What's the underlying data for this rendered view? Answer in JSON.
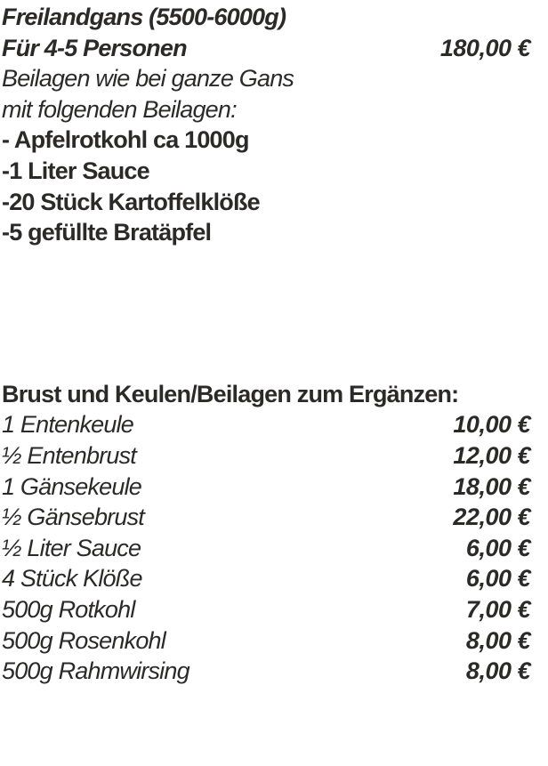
{
  "page": {
    "background": "#ffffff",
    "text_color": "#2b2a29"
  },
  "section_gans": {
    "title": "Freilandgans (5500-6000g)",
    "serving": {
      "label": "Für 4-5 Personen",
      "price": "180,00 €"
    },
    "notes": [
      "Beilagen wie bei ganze Gans",
      "mit folgenden Beilagen:"
    ],
    "sides": [
      "- Apfelrotkohl ca 1000g",
      "-1 Liter Sauce",
      "-20 Stück Kartoffelklöße",
      "-5 gefüllte Bratäpfel"
    ]
  },
  "section_extras": {
    "heading": "Brust und Keulen/Beilagen zum Ergänzen:",
    "items": [
      {
        "name": "1 Entenkeule",
        "price": "10,00 €"
      },
      {
        "name": "½ Entenbrust",
        "price": "12,00 €"
      },
      {
        "name": "1 Gänsekeule",
        "price": "18,00 €"
      },
      {
        "name": "½ Gänsebrust",
        "price": "22,00 €"
      },
      {
        "name": "½ Liter Sauce",
        "price": "6,00 €"
      },
      {
        "name": "4 Stück Klöße",
        "price": "6,00 €"
      },
      {
        "name": "500g Rotkohl",
        "price": "7,00 €"
      },
      {
        "name": "500g Rosenkohl",
        "price": "8,00 €"
      },
      {
        "name": "500g Rahmwirsing",
        "price": "8,00 €"
      }
    ]
  }
}
